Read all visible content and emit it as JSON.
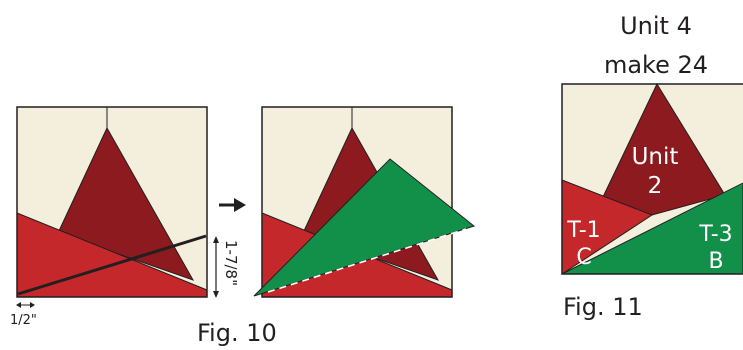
{
  "colors": {
    "cream": "#f3efdc",
    "dark_red": "#8c1a1e",
    "red": "#c4282a",
    "green": "#12904a",
    "outline": "#231f20",
    "white": "#ffffff"
  },
  "fig10": {
    "caption": "Fig. 10",
    "measure_vertical": "1-7/8\"",
    "measure_horizontal": "1/2\""
  },
  "fig11": {
    "caption": "Fig. 11",
    "unit_title": "Unit 4",
    "unit_make": "make 24",
    "center_label_1": "Unit",
    "center_label_2": "2",
    "left_label_1": "T-1",
    "left_label_2": "C",
    "right_label_1": "T-3",
    "right_label_2": "B"
  },
  "icons": {
    "arrow": "right-arrow-icon"
  }
}
